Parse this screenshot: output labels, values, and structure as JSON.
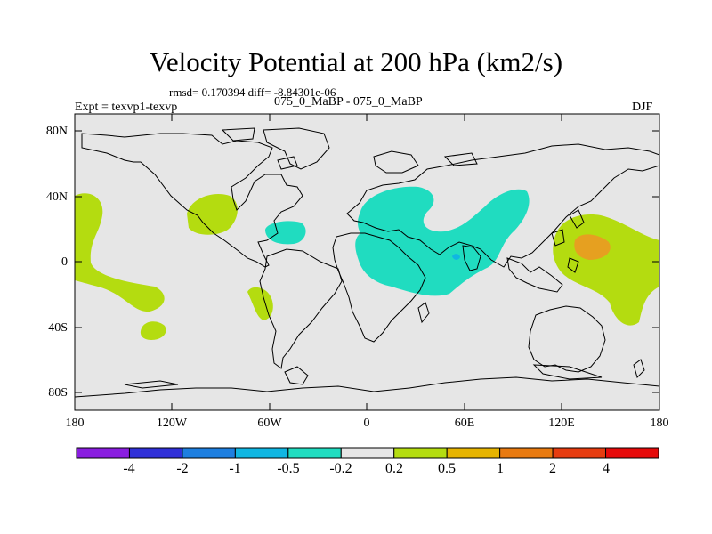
{
  "title": "Velocity Potential at 200 hPa (km2/s)",
  "stats": "rmsd= 0.170394 diff= -8.84301e-06",
  "experiment": "Expt = texvp1-texvp",
  "cases": "075_0_MaBP - 075_0_MaBP",
  "season": "DJF",
  "lat_labels": [
    "80N",
    "40N",
    "0",
    "40S",
    "80S"
  ],
  "lon_labels": [
    "180",
    "120W",
    "60W",
    "0",
    "60E",
    "120E",
    "180"
  ],
  "colorbar": {
    "labels": [
      "-4",
      "-2",
      "-1",
      "-0.5",
      "-0.2",
      "0.2",
      "0.5",
      "1",
      "2",
      "4"
    ],
    "colors": [
      "#8a1ee0",
      "#3030d8",
      "#1e7fe0",
      "#10b6e2",
      "#20dcc0",
      "#e6e6e6",
      "#b4dc10",
      "#e6b400",
      "#e87a10",
      "#e63c10",
      "#e60a0a"
    ]
  },
  "palette": {
    "land_background": "#e6e6e6",
    "positive_light": "#b4dc10",
    "positive_strong": "#e6a020",
    "negative_light": "#20dcc0",
    "negative_strong": "#10b6e2"
  }
}
